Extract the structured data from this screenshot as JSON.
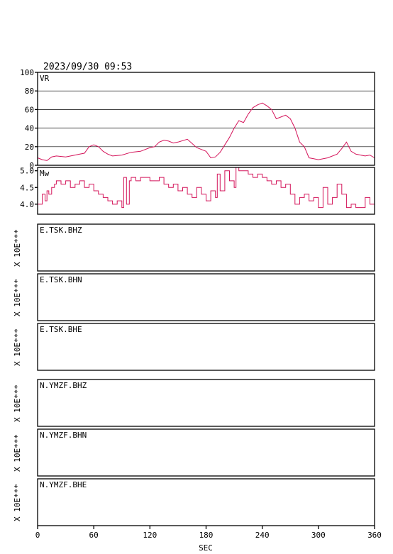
{
  "header": {
    "timestamp": "2023/09/30 09:53"
  },
  "chart_data": [
    {
      "type": "line",
      "label": "VR",
      "ylim": [
        0,
        100
      ],
      "yticks": [
        0,
        20,
        40,
        60,
        80,
        100
      ],
      "grid": true,
      "color": "#d4145a",
      "series": [
        {
          "x": [
            0,
            5,
            10,
            15,
            20,
            30,
            40,
            45,
            50,
            55,
            60,
            65,
            70,
            75,
            80,
            90,
            100,
            110,
            120,
            125,
            130,
            135,
            140,
            145,
            150,
            160,
            170,
            175,
            180,
            185,
            190,
            195,
            200,
            205,
            210,
            215,
            220,
            225,
            230,
            235,
            240,
            245,
            250,
            255,
            260,
            265,
            270,
            275,
            280,
            285,
            290,
            295,
            300,
            310,
            320,
            325,
            330,
            335,
            340,
            350,
            355,
            360
          ],
          "y": [
            8,
            6,
            5,
            9,
            10,
            9,
            11,
            12,
            13,
            20,
            22,
            20,
            15,
            12,
            10,
            11,
            14,
            15,
            19,
            20,
            25,
            27,
            26,
            24,
            25,
            28,
            19,
            17,
            15,
            8,
            9,
            14,
            22,
            30,
            40,
            48,
            46,
            55,
            62,
            65,
            67,
            64,
            60,
            50,
            52,
            54,
            50,
            40,
            25,
            20,
            8,
            7,
            6,
            8,
            12,
            18,
            25,
            15,
            12,
            10,
            11,
            8
          ]
        }
      ]
    },
    {
      "type": "line",
      "label": "Mw",
      "ylim": [
        3.7,
        5.1
      ],
      "yticks": [
        4.0,
        4.5,
        5.0
      ],
      "ytick_labels": [
        "4.0",
        "4.5",
        "5.0"
      ],
      "grid": false,
      "color": "#d4145a",
      "series": [
        {
          "x": [
            0,
            5,
            8,
            10,
            12,
            15,
            18,
            20,
            25,
            30,
            35,
            40,
            45,
            50,
            55,
            60,
            65,
            70,
            75,
            80,
            85,
            90,
            92,
            95,
            98,
            100,
            105,
            110,
            120,
            130,
            135,
            140,
            145,
            150,
            155,
            160,
            165,
            170,
            175,
            180,
            185,
            190,
            192,
            195,
            200,
            205,
            210,
            212,
            215,
            220,
            225,
            230,
            235,
            240,
            245,
            250,
            255,
            260,
            265,
            270,
            275,
            280,
            285,
            290,
            295,
            300,
            305,
            310,
            315,
            320,
            325,
            330,
            335,
            340,
            345,
            350,
            355,
            360
          ],
          "y": [
            4.0,
            4.3,
            4.1,
            4.4,
            4.3,
            4.5,
            4.6,
            4.7,
            4.6,
            4.7,
            4.5,
            4.6,
            4.7,
            4.5,
            4.6,
            4.4,
            4.3,
            4.2,
            4.1,
            4.0,
            4.1,
            3.9,
            4.8,
            4.0,
            4.7,
            4.8,
            4.7,
            4.8,
            4.7,
            4.8,
            4.6,
            4.5,
            4.6,
            4.4,
            4.5,
            4.3,
            4.2,
            4.5,
            4.3,
            4.1,
            4.4,
            4.2,
            4.9,
            4.4,
            5.0,
            4.7,
            4.5,
            5.1,
            5.0,
            5.0,
            4.9,
            4.8,
            4.9,
            4.8,
            4.7,
            4.6,
            4.7,
            4.5,
            4.6,
            4.3,
            4.0,
            4.2,
            4.3,
            4.1,
            4.2,
            3.9,
            4.5,
            4.0,
            4.2,
            4.6,
            4.3,
            3.9,
            4.0,
            3.9,
            3.9,
            4.2,
            4.0,
            3.8
          ]
        }
      ]
    }
  ],
  "traces": [
    {
      "station": "E.TSK.BHZ",
      "scale": "X 10E***"
    },
    {
      "station": "E.TSK.BHN",
      "scale": "X 10E***"
    },
    {
      "station": "E.TSK.BHE",
      "scale": "X 10E***"
    },
    {
      "station": "N.YMZF.BHZ",
      "scale": "X 10E***"
    },
    {
      "station": "N.YMZF.BHN",
      "scale": "X 10E***"
    },
    {
      "station": "N.YMZF.BHE",
      "scale": "X 10E***"
    }
  ],
  "xaxis": {
    "label": "SEC",
    "xlim": [
      0,
      360
    ],
    "ticks": [
      0,
      60,
      120,
      180,
      240,
      300,
      360
    ]
  }
}
